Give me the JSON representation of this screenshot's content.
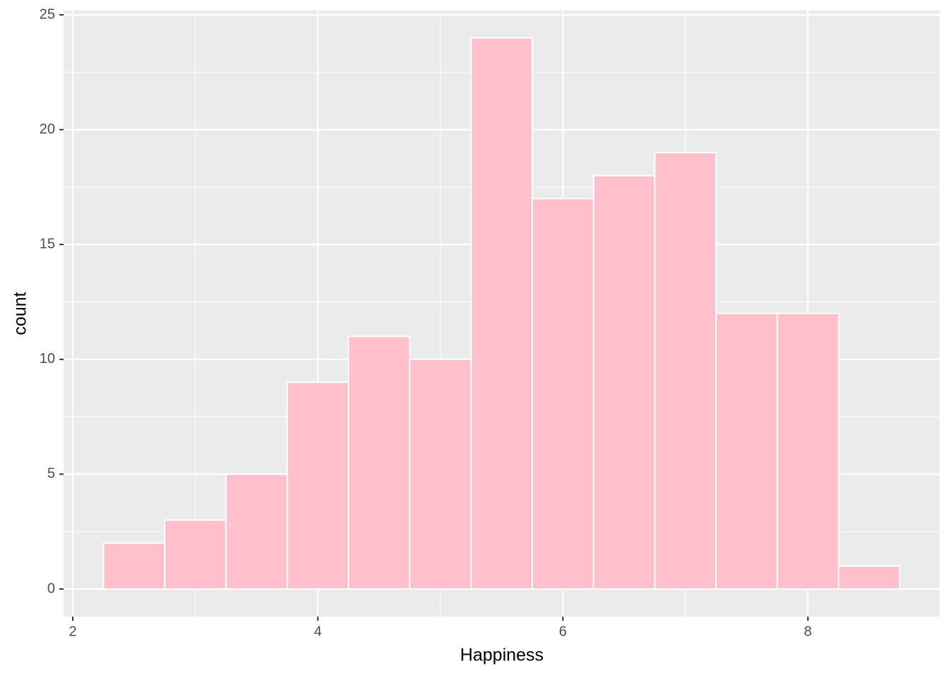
{
  "chart_data": {
    "type": "histogram",
    "x_label": "Happiness",
    "y_label": "count",
    "bins": [
      2.25,
      2.75,
      3.25,
      3.75,
      4.25,
      4.75,
      5.25,
      5.75,
      6.25,
      6.75,
      7.25,
      7.75,
      8.25,
      8.75
    ],
    "values": [
      2,
      3,
      5,
      9,
      11,
      10,
      24,
      17,
      18,
      19,
      12,
      12,
      1
    ],
    "color": "#ffc0cb",
    "xlim": [
      1.925,
      9.075
    ],
    "ylim": [
      -1.2,
      25.2
    ],
    "xticks": [
      2,
      4,
      6,
      8
    ],
    "yticks": [
      0,
      5,
      10,
      15,
      20,
      25
    ],
    "grid": true
  }
}
